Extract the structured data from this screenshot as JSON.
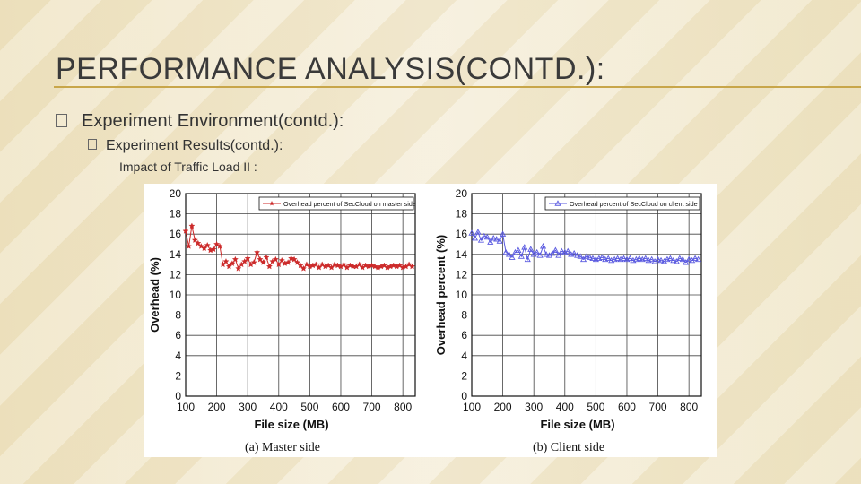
{
  "slide": {
    "title": "PERFORMANCE ANALYSIS(CONTD.):",
    "bullet1": "Experiment Environment(contd.):",
    "bullet2": "Experiment Results(contd.):",
    "bullet3": "Impact of Traffic Load II :"
  },
  "chart_data": [
    {
      "type": "line",
      "caption": "(a)  Master side",
      "xlabel": "File size (MB)",
      "ylabel": "Overhead (%)",
      "xticks": [
        100,
        200,
        300,
        400,
        500,
        600,
        700,
        800
      ],
      "yticks": [
        0,
        2,
        4,
        6,
        8,
        10,
        12,
        14,
        16,
        18,
        20
      ],
      "xlim": [
        100,
        840
      ],
      "ylim": [
        0,
        20
      ],
      "grid": true,
      "legend_position": "top-right",
      "color": "#cc2a2a",
      "marker": "star",
      "series": [
        {
          "name": "Overhead percent of SecCloud on master side",
          "x": [
            100,
            110,
            120,
            130,
            140,
            150,
            160,
            170,
            180,
            190,
            200,
            210,
            220,
            230,
            240,
            250,
            260,
            270,
            280,
            290,
            300,
            310,
            320,
            330,
            340,
            350,
            360,
            370,
            380,
            390,
            400,
            410,
            420,
            430,
            440,
            450,
            460,
            470,
            480,
            490,
            500,
            510,
            520,
            530,
            540,
            550,
            560,
            570,
            580,
            590,
            600,
            610,
            620,
            630,
            640,
            650,
            660,
            670,
            680,
            690,
            700,
            710,
            720,
            730,
            740,
            750,
            760,
            770,
            780,
            790,
            800,
            810,
            820,
            830
          ],
          "values": [
            16.3,
            14.8,
            16.8,
            15.4,
            15.1,
            14.8,
            14.6,
            14.9,
            14.4,
            14.5,
            15.0,
            14.8,
            13.0,
            13.3,
            12.8,
            13.1,
            13.5,
            12.6,
            13.0,
            13.3,
            13.6,
            13.0,
            13.2,
            14.2,
            13.5,
            13.2,
            13.7,
            12.8,
            13.3,
            13.5,
            13.0,
            13.4,
            13.1,
            13.2,
            13.6,
            13.5,
            13.2,
            12.9,
            12.6,
            13.0,
            12.8,
            12.9,
            13.0,
            12.7,
            13.0,
            12.8,
            12.9,
            12.7,
            13.0,
            12.9,
            12.8,
            13.0,
            12.7,
            12.9,
            12.8,
            12.8,
            13.0,
            12.7,
            12.9,
            12.8,
            12.9,
            12.8,
            12.7,
            12.8,
            12.9,
            12.7,
            12.8,
            12.9,
            12.8,
            12.9,
            12.7,
            12.8,
            13.0,
            12.8
          ]
        }
      ]
    },
    {
      "type": "line",
      "caption": "(b)  Client side",
      "xlabel": "File size (MB)",
      "ylabel": "Overhead percent (%)",
      "xticks": [
        100,
        200,
        300,
        400,
        500,
        600,
        700,
        800
      ],
      "yticks": [
        0,
        2,
        4,
        6,
        8,
        10,
        12,
        14,
        16,
        18,
        20
      ],
      "xlim": [
        100,
        840
      ],
      "ylim": [
        0,
        20
      ],
      "grid": true,
      "legend_position": "top-right",
      "color": "#5a5ae0",
      "marker": "triangle",
      "series": [
        {
          "name": "Overhead percent of SecCloud on client side",
          "x": [
            100,
            110,
            120,
            130,
            140,
            150,
            160,
            170,
            180,
            190,
            200,
            210,
            220,
            230,
            240,
            250,
            260,
            270,
            280,
            290,
            300,
            310,
            320,
            330,
            340,
            350,
            360,
            370,
            380,
            390,
            400,
            410,
            420,
            430,
            440,
            450,
            460,
            470,
            480,
            490,
            500,
            510,
            520,
            530,
            540,
            550,
            560,
            570,
            580,
            590,
            600,
            610,
            620,
            630,
            640,
            650,
            660,
            670,
            680,
            690,
            700,
            710,
            720,
            730,
            740,
            750,
            760,
            770,
            780,
            790,
            800,
            810,
            820,
            830
          ],
          "values": [
            16.1,
            15.6,
            16.2,
            15.4,
            15.8,
            15.7,
            15.2,
            15.6,
            15.5,
            15.3,
            16.0,
            14.2,
            14.0,
            13.7,
            14.2,
            14.4,
            13.8,
            14.7,
            13.5,
            14.5,
            14.0,
            14.2,
            13.9,
            14.8,
            14.0,
            13.9,
            14.1,
            14.4,
            13.9,
            14.3,
            14.2,
            14.3,
            14.0,
            14.1,
            13.9,
            13.8,
            13.5,
            13.8,
            13.7,
            13.6,
            13.5,
            13.6,
            13.7,
            13.5,
            13.6,
            13.4,
            13.5,
            13.6,
            13.5,
            13.6,
            13.5,
            13.6,
            13.4,
            13.5,
            13.6,
            13.5,
            13.6,
            13.4,
            13.5,
            13.3,
            13.5,
            13.4,
            13.3,
            13.5,
            13.6,
            13.4,
            13.3,
            13.6,
            13.5,
            13.2,
            13.5,
            13.4,
            13.6,
            13.5
          ]
        }
      ]
    }
  ]
}
